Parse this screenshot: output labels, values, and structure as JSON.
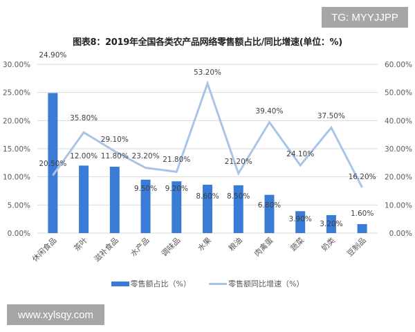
{
  "title": "图表8：2019年全国各类农产品网络零售额占比/同比增速(单位：%)",
  "watermarks": {
    "top_right": "TG: MYYJJPP",
    "bottom_left": "www.xylsqy.com"
  },
  "colors": {
    "bar": "#3a7bd5",
    "line": "#a9c4e6",
    "grid": "#d9d9d9",
    "axis_text": "#595959"
  },
  "legend": {
    "bar_label": "零售额占比（%）",
    "line_label": "零售额同比增速（%）"
  },
  "chart_data": {
    "type": "bar+line",
    "title": "图表8：2019年全国各类农产品网络零售额占比/同比增速(单位：%)",
    "categories": [
      "休闲食品",
      "茶叶",
      "滋补食品",
      "水产品",
      "调味品",
      "水果",
      "粮油",
      "肉禽蛋",
      "蔬菜",
      "奶类",
      "豆制品"
    ],
    "series": [
      {
        "name": "零售额占比（%）",
        "type": "bar",
        "axis": "left",
        "values": [
          24.9,
          12.0,
          11.8,
          9.5,
          9.2,
          8.6,
          8.5,
          6.8,
          3.9,
          3.2,
          1.6
        ],
        "labels": [
          "24.90%",
          "12.00%",
          "11.80%",
          "9.50%",
          "9.20%",
          "8.60%",
          "8.50%",
          "6.80%",
          "3.90%",
          "3.20%",
          "1.60%"
        ]
      },
      {
        "name": "零售额同比增速（%）",
        "type": "line",
        "axis": "right",
        "values": [
          20.5,
          35.8,
          29.1,
          23.2,
          21.8,
          53.2,
          21.2,
          39.4,
          24.1,
          37.5,
          16.2
        ],
        "labels": [
          "20.50%",
          "35.80%",
          "29.10%",
          "23.20%",
          "21.80%",
          "53.20%",
          "21.20%",
          "39.40%",
          "24.10%",
          "37.50%",
          "16.20%"
        ]
      }
    ],
    "y_left": {
      "ylim": [
        0,
        30
      ],
      "ticks": [
        "0.00%",
        "5.00%",
        "10.00%",
        "15.00%",
        "20.00%",
        "25.00%",
        "30.00%"
      ]
    },
    "y_right": {
      "ylim": [
        0,
        60
      ],
      "ticks": [
        "0.00%",
        "10.00%",
        "20.00%",
        "30.00%",
        "40.00%",
        "50.00%",
        "60.00%"
      ]
    },
    "xlabel": "",
    "ylabel": "",
    "grid": true,
    "legend_position": "bottom"
  }
}
